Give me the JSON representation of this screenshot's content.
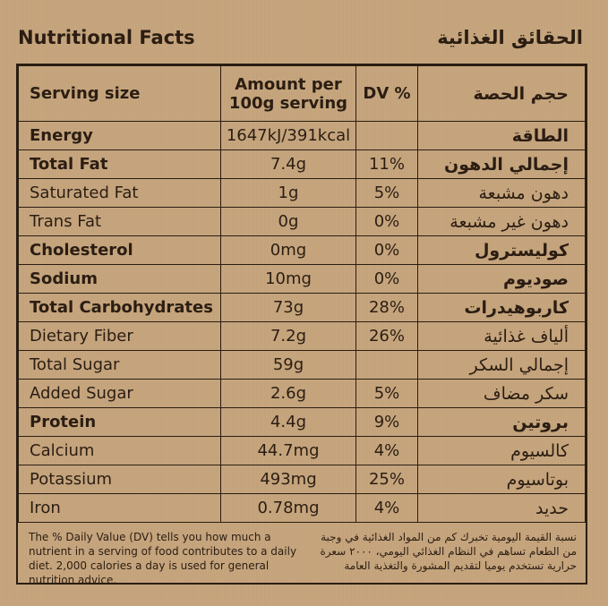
{
  "header": {
    "title_en": "Nutritional Facts",
    "title_ar": "الحقائق الغذائية"
  },
  "table": {
    "head": {
      "serving": "Serving size",
      "amount": "Amount per 100g serving",
      "dv": "DV %",
      "serving_ar": "حجم الحصة"
    },
    "rows": [
      {
        "en": "Energy",
        "amount": "1647kJ/391kcal",
        "dv": "",
        "ar": "الطاقة",
        "bold": true
      },
      {
        "en": "Total Fat",
        "amount": "7.4g",
        "dv": "11%",
        "ar": "إجمالي الدهون",
        "bold": true
      },
      {
        "en": "Saturated Fat",
        "amount": "1g",
        "dv": "5%",
        "ar": "دهون مشبعة",
        "bold": false
      },
      {
        "en": "Trans Fat",
        "amount": "0g",
        "dv": "0%",
        "ar": "دهون غير مشبعة",
        "bold": false
      },
      {
        "en": "Cholesterol",
        "amount": "0mg",
        "dv": "0%",
        "ar": "كوليسترول",
        "bold": true
      },
      {
        "en": "Sodium",
        "amount": "10mg",
        "dv": "0%",
        "ar": "صوديوم",
        "bold": true
      },
      {
        "en": "Total Carbohydrates",
        "amount": "73g",
        "dv": "28%",
        "ar": "كاربوهيدرات",
        "bold": true
      },
      {
        "en": "Dietary Fiber",
        "amount": "7.2g",
        "dv": "26%",
        "ar": "ألياف غذائية",
        "bold": false
      },
      {
        "en": "Total Sugar",
        "amount": "59g",
        "dv": "",
        "ar": "إجمالي السكر",
        "bold": false
      },
      {
        "en": "Added Sugar",
        "amount": "2.6g",
        "dv": "5%",
        "ar": "سكر مضاف",
        "bold": false
      },
      {
        "en": "Protein",
        "amount": "4.4g",
        "dv": "9%",
        "ar": "بروتين",
        "bold": true
      },
      {
        "en": "Calcium",
        "amount": "44.7mg",
        "dv": "4%",
        "ar": "كالسيوم",
        "bold": false
      },
      {
        "en": "Potassium",
        "amount": "493mg",
        "dv": "25%",
        "ar": "بوتاسيوم",
        "bold": false
      },
      {
        "en": "Iron",
        "amount": "0.78mg",
        "dv": "4%",
        "ar": "حديد",
        "bold": false
      }
    ]
  },
  "footer": {
    "en": "The % Daily Value (DV) tells you how much a nutrient in a serving of food contributes to a daily diet. 2,000 calories a day is used for general nutrition advice.",
    "ar": "نسبة القيمة اليومية تخبرك كم من المواد الغذائية في وجبة من الطعام تساهم في النظام الغذائي اليومي، ٢٠٠٠ سعرة حرارية تستخدم يوميا لتقديم المشورة والتغذية العامة"
  }
}
